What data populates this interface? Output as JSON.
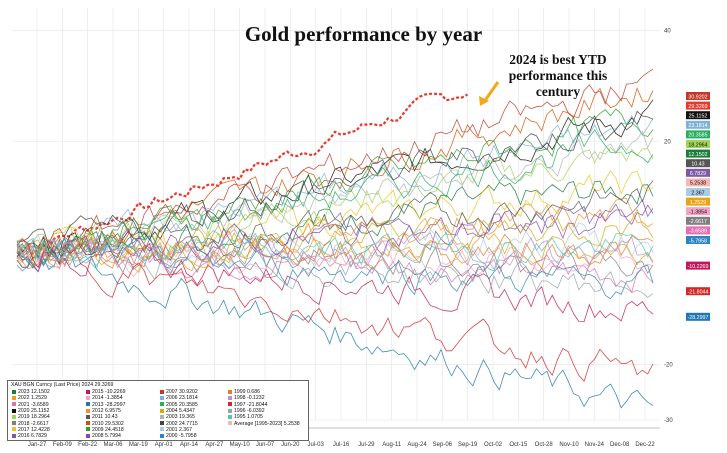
{
  "title": "Gold performance by year",
  "annotation": "2024 is best YTD performance this century",
  "chart_data": {
    "type": "line",
    "title": "Gold performance by year",
    "x_ticks": [
      "Jan-27",
      "Feb-09",
      "Feb-22",
      "Mar-06",
      "Mar-19",
      "Apr-01",
      "Apr-14",
      "Apr-27",
      "May-10",
      "Jun-07",
      "Jun-20",
      "Jul-03",
      "Jul-16",
      "Jul-29",
      "Aug-11",
      "Aug-24",
      "Sep-06",
      "Sep-19",
      "Oct-02",
      "Oct-15",
      "Oct-28",
      "Nov-10",
      "Nov-24",
      "Dec-08",
      "Dec-22"
    ],
    "y_ticks": [
      40,
      20,
      -20,
      -30
    ],
    "ylim": [
      -30,
      44
    ],
    "grid": true,
    "legend_placement": "bottom-left",
    "legend_header": "XAU BGN Curncy (Last Price) 2024 29.3269",
    "series": [
      {
        "name": "2024",
        "final": 29.3269,
        "color": "#e8392d",
        "dashed": true
      },
      {
        "name": "2023",
        "final": 12.1502,
        "color": "#1a7d3a"
      },
      {
        "name": "2022",
        "final": 1.2529,
        "color": "#e8a317"
      },
      {
        "name": "2021",
        "final": -3.6589,
        "color": "#e36fb5"
      },
      {
        "name": "2020",
        "final": 25.1152,
        "color": "#111111"
      },
      {
        "name": "2019",
        "final": 18.2964,
        "color": "#9fd55b"
      },
      {
        "name": "2018",
        "final": -2.6617,
        "color": "#7f7f7f"
      },
      {
        "name": "2017",
        "final": 12.4228,
        "color": "#f0c419"
      },
      {
        "name": "2016",
        "final": 6.7829,
        "color": "#7b5aa6"
      },
      {
        "name": "2015",
        "final": -10.2269,
        "color": "#c2185b"
      },
      {
        "name": "2014",
        "final": -1.3854,
        "color": "#f5a3c7"
      },
      {
        "name": "2013",
        "final": -28.2997,
        "color": "#1f77b4"
      },
      {
        "name": "2012",
        "final": 6.9575,
        "color": "#f28e2b"
      },
      {
        "name": "2011",
        "final": 10.43,
        "color": "#555555"
      },
      {
        "name": "2010",
        "final": 29.5302,
        "color": "#d35400"
      },
      {
        "name": "2009",
        "final": 24.4518,
        "color": "#2ca02c"
      },
      {
        "name": "2008",
        "final": 5.7994,
        "color": "#8e44ad"
      },
      {
        "name": "2007",
        "final": 30.9202,
        "color": "#c0392b"
      },
      {
        "name": "2006",
        "final": 23.1814,
        "color": "#7fb3d5"
      },
      {
        "name": "2005",
        "final": 20.3585,
        "color": "#27ae60"
      },
      {
        "name": "2004",
        "final": 5.4347,
        "color": "#d4ac0d"
      },
      {
        "name": "2003",
        "final": 19.365,
        "color": "#b2b2b2"
      },
      {
        "name": "2002",
        "final": 24.7715,
        "color": "#444444"
      },
      {
        "name": "2001",
        "final": 2.367,
        "color": "#a9cce3"
      },
      {
        "name": "2000",
        "final": -5.7958,
        "color": "#2e86c1"
      },
      {
        "name": "1999",
        "final": 0.686,
        "color": "#e67e22"
      },
      {
        "name": "1998",
        "final": -0.1232,
        "color": "#bb8fce"
      },
      {
        "name": "1997",
        "final": -21.8044,
        "color": "#d62728"
      },
      {
        "name": "1996",
        "final": -6.0392,
        "color": "#95a5a6"
      },
      {
        "name": "1995",
        "final": 1.0705,
        "color": "#48c9b0"
      },
      {
        "name": "Average [1995-2023]",
        "final": 5.2538,
        "color": "#f5b7b1"
      }
    ],
    "end_labels": [
      {
        "label": "30.9202",
        "color": "#c0392b"
      },
      {
        "label": "29.3269",
        "color": "#e8392d"
      },
      {
        "label": "25.1152",
        "color": "#111111"
      },
      {
        "label": "23.1814",
        "color": "#7fb3d5"
      },
      {
        "label": "20.3585",
        "color": "#27ae60"
      },
      {
        "label": "18.2964",
        "color": "#9fd55b"
      },
      {
        "label": "12.1502",
        "color": "#1a7d3a"
      },
      {
        "label": "10.43",
        "color": "#555555"
      },
      {
        "label": "6.7829",
        "color": "#7b5aa6"
      },
      {
        "label": "5.2538",
        "color": "#f5b7b1"
      },
      {
        "label": "2.367",
        "color": "#a9cce3"
      },
      {
        "label": "1.2529",
        "color": "#e8a317"
      },
      {
        "label": "-1.3854",
        "color": "#f5a3c7"
      },
      {
        "label": "-2.6617",
        "color": "#7f7f7f"
      },
      {
        "label": "-3.6589",
        "color": "#e36fb5"
      },
      {
        "label": "-5.7958",
        "color": "#2e86c1"
      },
      {
        "label": "-10.2269",
        "color": "#c2185b"
      },
      {
        "label": "-21.8044",
        "color": "#d62728"
      },
      {
        "label": "-28.2997",
        "color": "#1f77b4"
      }
    ]
  }
}
